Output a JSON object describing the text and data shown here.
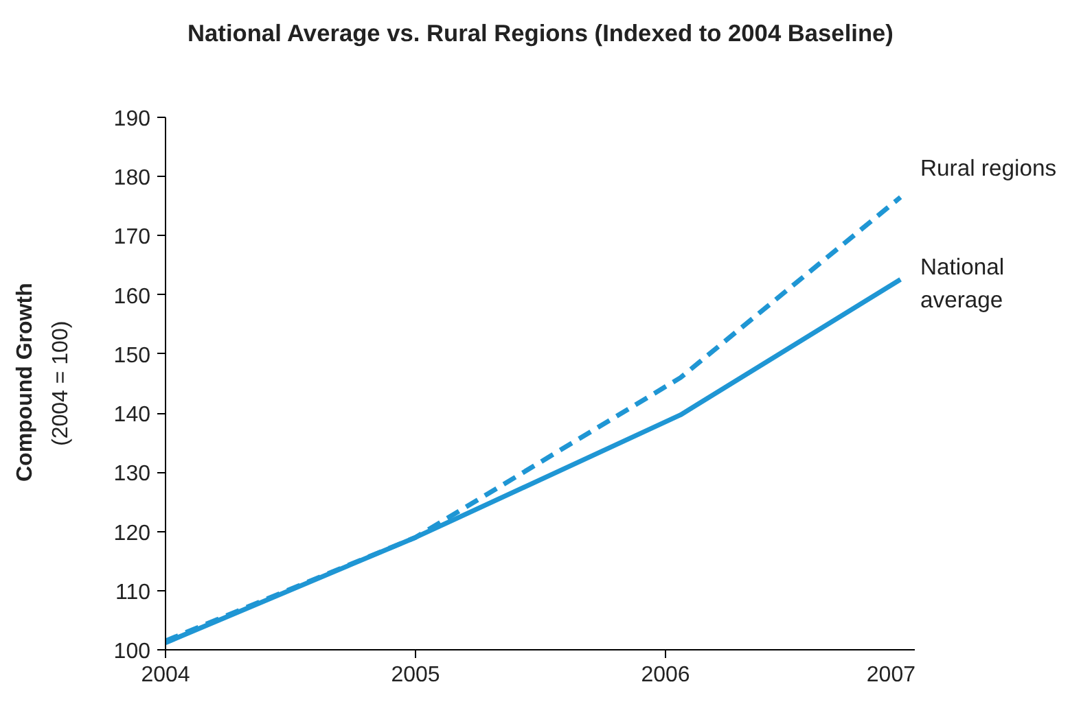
{
  "chart_data": {
    "type": "line",
    "title": "National Average vs. Rural Regions (Indexed to 2004 Baseline)",
    "ylabel": "Compound Growth\n(2004 = 100)",
    "x": [
      2004,
      2005,
      2006.06,
      2006.94
    ],
    "series": [
      {
        "name": "Rural regions",
        "color": "#1f96d4",
        "values": [
          101.5,
          119,
          146,
          176.5
        ],
        "line_style": "dashed"
      },
      {
        "name": "National\naverage",
        "color": "#1f96d4",
        "values": [
          101.2,
          119,
          139.7,
          162.6
        ],
        "line_style": "solid"
      }
    ],
    "xlim": [
      2004,
      2007
    ],
    "xticks": [
      2004,
      2005,
      2006,
      2007
    ],
    "ylim": [
      100,
      190
    ],
    "yticks": [
      100,
      110,
      120,
      130,
      140,
      150,
      160,
      170,
      180,
      190
    ],
    "grid": false,
    "legend": false,
    "marker": "none"
  }
}
